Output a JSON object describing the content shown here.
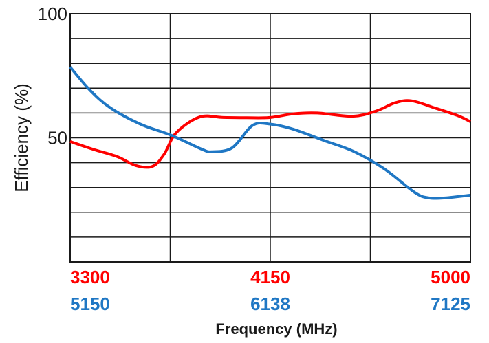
{
  "chart_data": {
    "type": "line",
    "title": "",
    "xlabel": "Frequency (MHz)",
    "ylabel": "Efficiency (%)",
    "ylim": [
      0,
      100
    ],
    "yticks": [
      "100",
      "50"
    ],
    "grid": true,
    "x_axes": [
      {
        "color": "#ff0000",
        "ticks": [
          "3300",
          "4150",
          "5000"
        ],
        "range": [
          3300,
          5000
        ]
      },
      {
        "color": "#1f77c4",
        "ticks": [
          "5150",
          "6138",
          "7125"
        ],
        "range": [
          5150,
          7125
        ]
      }
    ],
    "series": [
      {
        "color": "#ff0000",
        "axis": 0,
        "x": [
          3300,
          3400,
          3500,
          3580,
          3650,
          3700,
          3750,
          3850,
          3950,
          4050,
          4150,
          4250,
          4350,
          4500,
          4600,
          4680,
          4750,
          4850,
          4950,
          5000
        ],
        "y": [
          48.5,
          45.3,
          42.4,
          38.8,
          38.5,
          43.5,
          52,
          58.4,
          58.2,
          58.1,
          58.2,
          59.7,
          60,
          58.7,
          60.8,
          64.1,
          64.9,
          62,
          58.8,
          56.5
        ]
      },
      {
        "color": "#1f77c4",
        "axis": 1,
        "x": [
          5150,
          5250,
          5350,
          5500,
          5650,
          5800,
          5850,
          5950,
          6050,
          6138,
          6250,
          6400,
          6550,
          6700,
          6850,
          6920,
          7000,
          7125
        ],
        "y": [
          78.5,
          69,
          62,
          55.4,
          51,
          45.4,
          44.4,
          46,
          55,
          55.5,
          53.5,
          49,
          44.5,
          37.5,
          28,
          25.8,
          25.8,
          26.9
        ]
      }
    ]
  }
}
